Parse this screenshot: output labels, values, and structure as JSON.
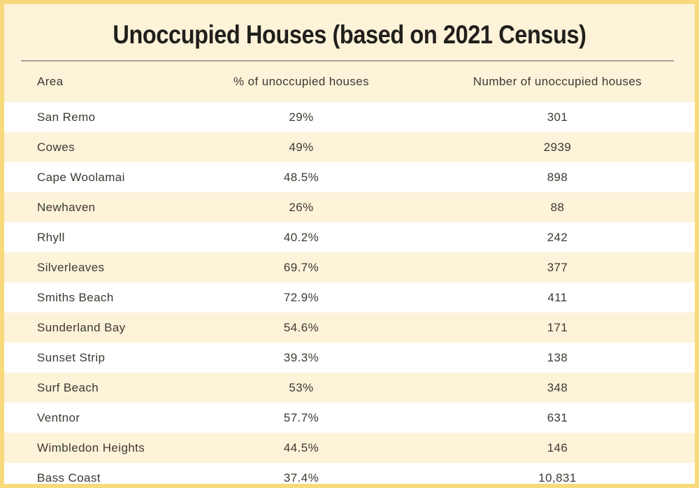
{
  "page": {
    "title": "Unoccupied Houses (based on 2021 Census)",
    "colors": {
      "frame_border": "#f8da7c",
      "background_cream": "#fdf3d9",
      "row_white": "#ffffff",
      "title_text": "#201f1b",
      "body_text": "#3b3a32",
      "divider_line": "#a5a49c"
    }
  },
  "table": {
    "headers": [
      "Area",
      "% of unoccupied houses",
      "Number of unoccupied houses"
    ],
    "rows": [
      [
        "San Remo",
        "29%",
        "301"
      ],
      [
        "Cowes",
        "49%",
        "2939"
      ],
      [
        "Cape Woolamai",
        "48.5%",
        "898"
      ],
      [
        "Newhaven",
        "26%",
        "88"
      ],
      [
        "Rhyll",
        "40.2%",
        "242"
      ],
      [
        "Silverleaves",
        "69.7%",
        "377"
      ],
      [
        "Smiths Beach",
        "72.9%",
        "411"
      ],
      [
        "Sunderland Bay",
        "54.6%",
        "171"
      ],
      [
        "Sunset Strip",
        "39.3%",
        "138"
      ],
      [
        "Surf Beach",
        "53%",
        "348"
      ],
      [
        "Ventnor",
        "57.7%",
        "631"
      ],
      [
        "Wimbledon Heights",
        "44.5%",
        "146"
      ],
      [
        "Bass Coast",
        "37.4%",
        "10,831"
      ]
    ]
  },
  "chart_data": {
    "type": "table",
    "title": "Unoccupied Houses (based on 2021 Census)",
    "columns": [
      "Area",
      "% of unoccupied houses",
      "Number of unoccupied houses"
    ],
    "rows": [
      {
        "area": "San Remo",
        "percent_unoccupied": 29,
        "number_unoccupied": 301
      },
      {
        "area": "Cowes",
        "percent_unoccupied": 49,
        "number_unoccupied": 2939
      },
      {
        "area": "Cape Woolamai",
        "percent_unoccupied": 48.5,
        "number_unoccupied": 898
      },
      {
        "area": "Newhaven",
        "percent_unoccupied": 26,
        "number_unoccupied": 88
      },
      {
        "area": "Rhyll",
        "percent_unoccupied": 40.2,
        "number_unoccupied": 242
      },
      {
        "area": "Silverleaves",
        "percent_unoccupied": 69.7,
        "number_unoccupied": 377
      },
      {
        "area": "Smiths Beach",
        "percent_unoccupied": 72.9,
        "number_unoccupied": 411
      },
      {
        "area": "Sunderland Bay",
        "percent_unoccupied": 54.6,
        "number_unoccupied": 171
      },
      {
        "area": "Sunset Strip",
        "percent_unoccupied": 39.3,
        "number_unoccupied": 138
      },
      {
        "area": "Surf Beach",
        "percent_unoccupied": 53,
        "number_unoccupied": 348
      },
      {
        "area": "Ventnor",
        "percent_unoccupied": 57.7,
        "number_unoccupied": 631
      },
      {
        "area": "Wimbledon Heights",
        "percent_unoccupied": 44.5,
        "number_unoccupied": 146
      },
      {
        "area": "Bass Coast",
        "percent_unoccupied": 37.4,
        "number_unoccupied": 10831
      }
    ],
    "layout": {
      "row_striping": "alternating white and cream bands",
      "header_alignment": [
        "left",
        "center",
        "center"
      ],
      "grid": false
    }
  }
}
